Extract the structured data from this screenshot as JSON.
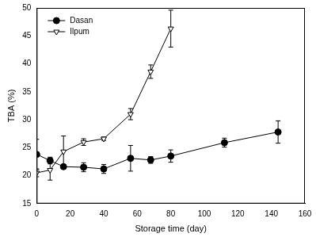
{
  "chart_data": {
    "type": "line",
    "x_label": "Storage time (day)",
    "y_label": "TBA (%)",
    "xlim": [
      0,
      160
    ],
    "xticks": [
      0,
      20,
      40,
      60,
      80,
      100,
      120,
      140,
      160
    ],
    "ylim": [
      15,
      50
    ],
    "yticks": [
      15,
      20,
      25,
      30,
      35,
      40,
      45,
      50
    ],
    "grid": false,
    "legend": "upper left",
    "series": [
      {
        "name": "Dasan",
        "color": "#000000",
        "marker": "circle",
        "line_style": "solid",
        "x": [
          0,
          8,
          16,
          28,
          40,
          56,
          68,
          80,
          112,
          144
        ],
        "values": [
          23.8,
          22.7,
          21.6,
          21.5,
          21.2,
          23.1,
          22.8,
          23.5,
          25.9,
          27.8
        ],
        "error": [
          2.7,
          0.6,
          0.3,
          0.8,
          0.8,
          2.3,
          0.6,
          1.1,
          0.8,
          2.0
        ]
      },
      {
        "name": "Ilpum",
        "color": "#000000",
        "marker": "triangle_down",
        "line_style": "solid",
        "x": [
          0,
          8,
          16,
          28,
          40,
          56,
          68,
          80
        ],
        "values": [
          20.5,
          21.0,
          24.3,
          26.0,
          26.6,
          31.0,
          38.6,
          46.3
        ],
        "error": [
          0.7,
          1.8,
          2.8,
          0.6,
          0.3,
          1.0,
          1.2,
          3.3
        ]
      }
    ]
  }
}
